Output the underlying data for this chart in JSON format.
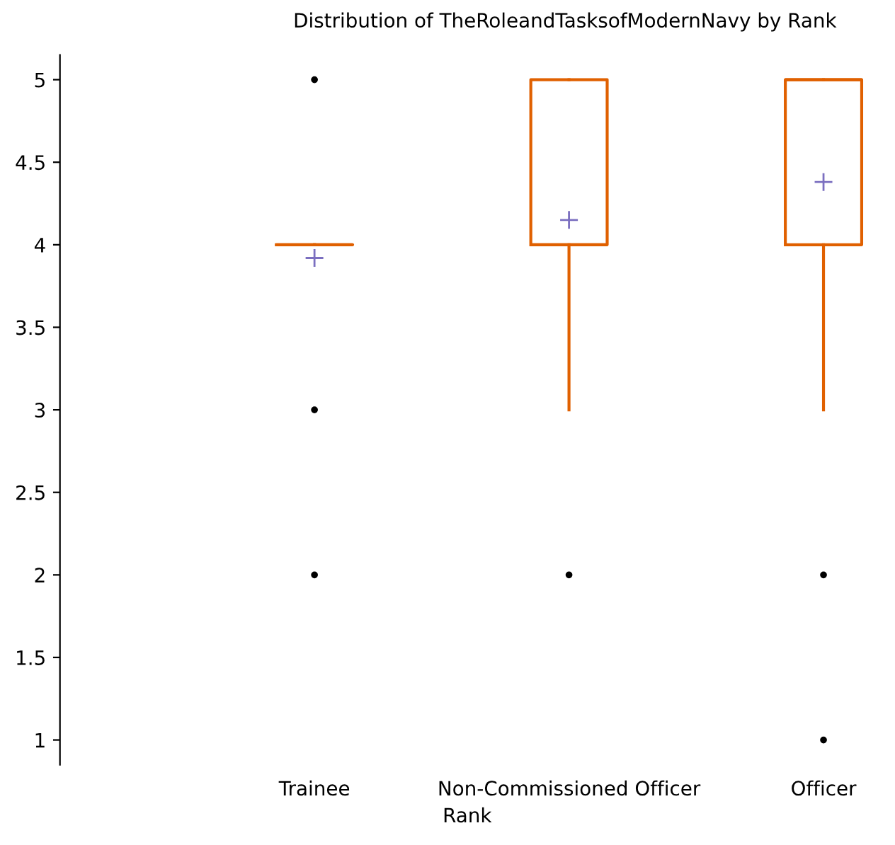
{
  "chart_data": {
    "type": "box",
    "title": "Distribution of TheRoleandTasksofModernNavy by Rank",
    "xlabel": "Rank",
    "categories": [
      "Trainee",
      "Non-Commissioned Officer",
      "Officer"
    ],
    "color": "#e06000",
    "boxes": [
      {
        "low": 4,
        "q1": 4,
        "median": 4,
        "q3": 4,
        "high": 4,
        "mean": 3.92,
        "outliers": [
          5,
          3,
          2
        ]
      },
      {
        "low": 3,
        "q1": 4,
        "median": 4,
        "q3": 5,
        "high": 5,
        "mean": 4.15,
        "outliers": [
          2
        ]
      },
      {
        "low": 3,
        "q1": 4,
        "median": 5,
        "q3": 5,
        "high": 5,
        "mean": 4.38,
        "outliers": [
          2,
          1
        ]
      }
    ],
    "ylim": [
      0.85,
      5.15
    ],
    "yticks": [
      1,
      1.5,
      2,
      2.5,
      3,
      3.5,
      4,
      4.5,
      5
    ],
    "grid": false
  }
}
